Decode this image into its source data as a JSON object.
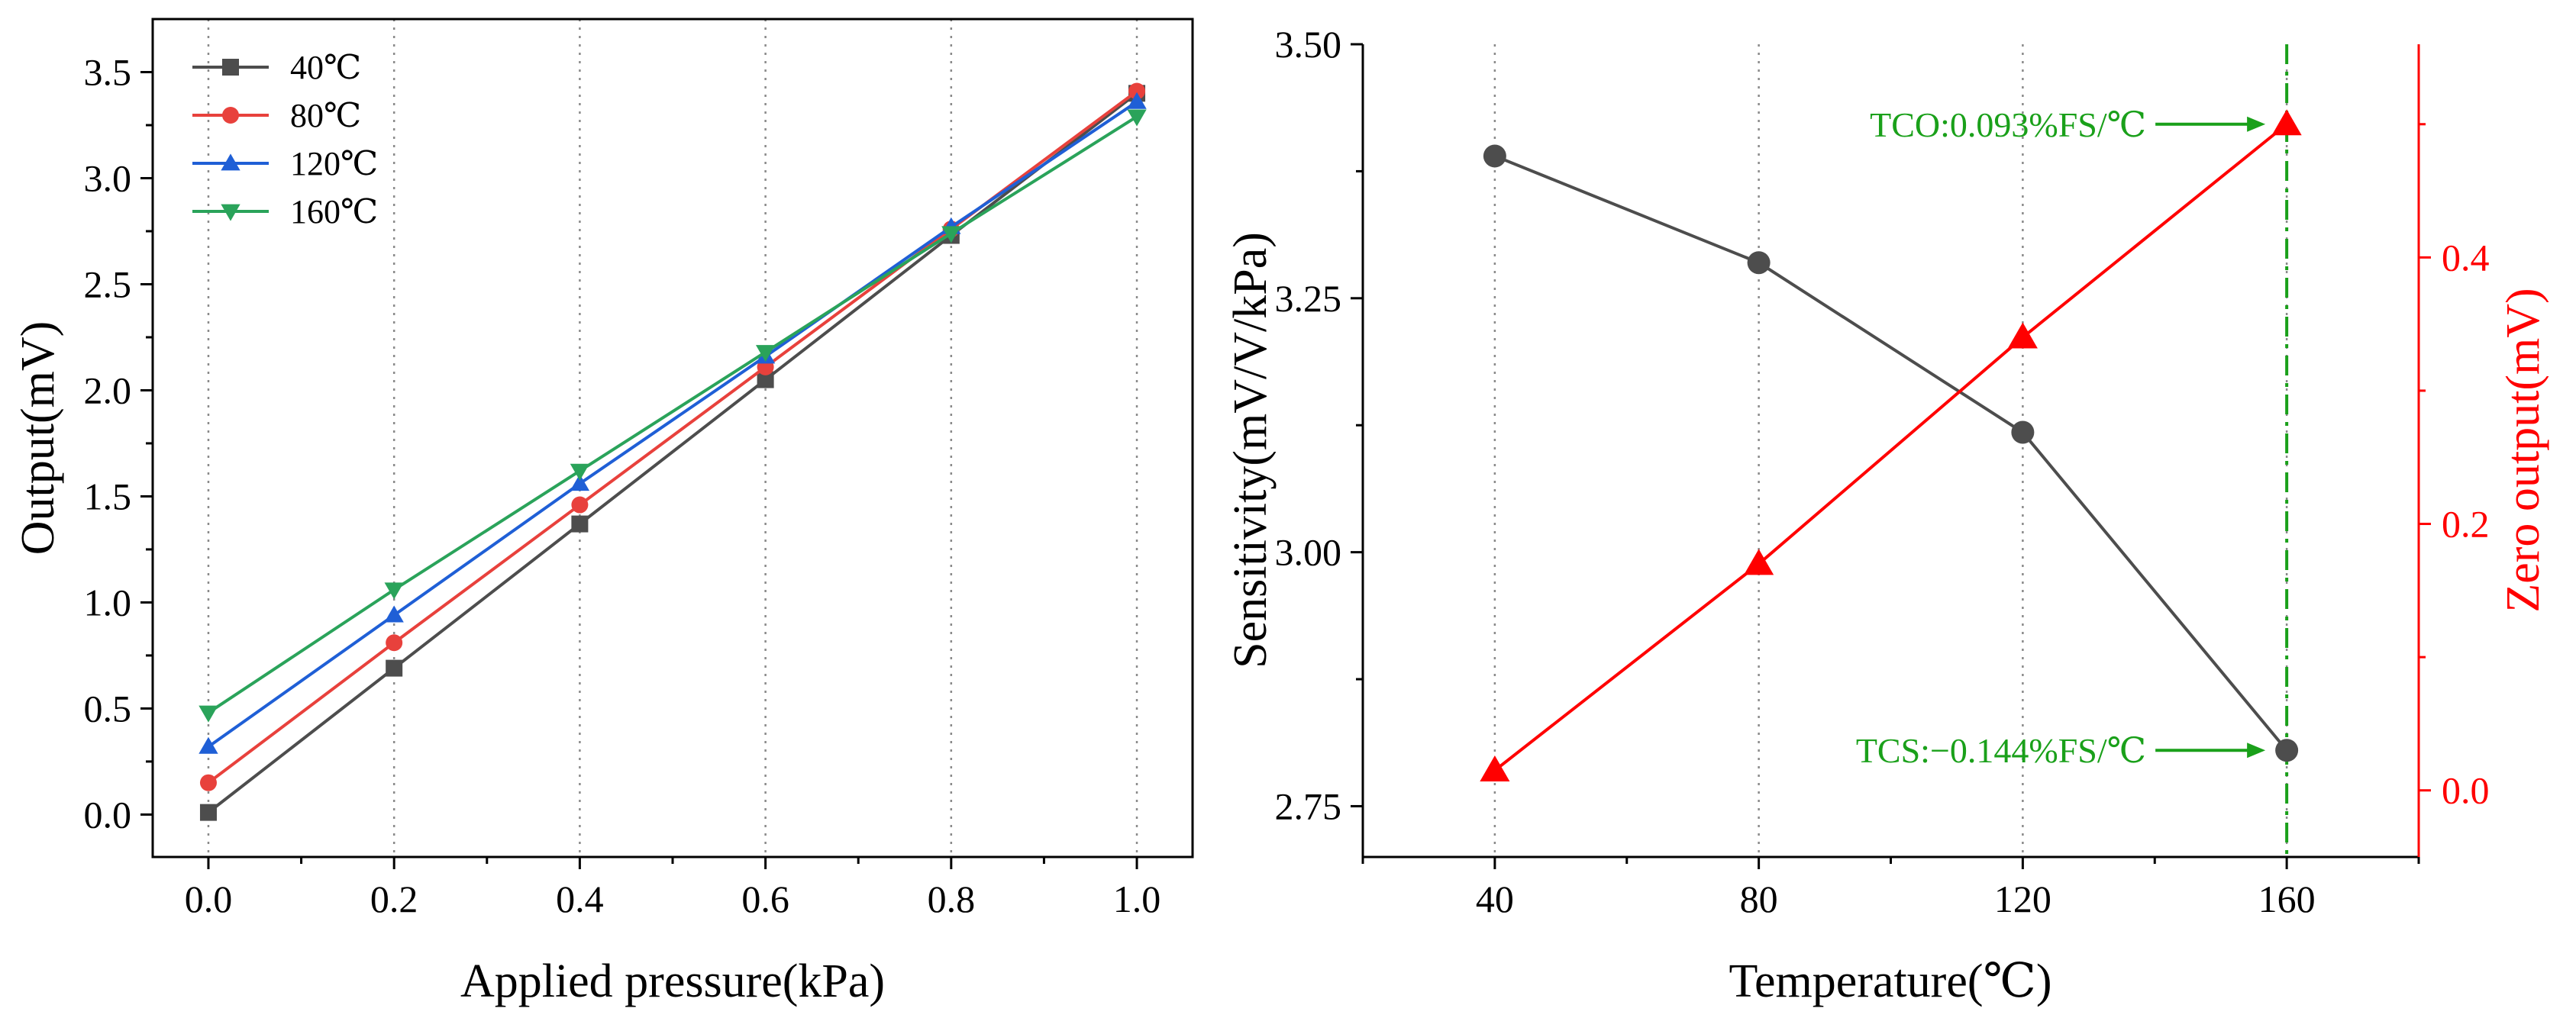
{
  "chart_data": [
    {
      "type": "line",
      "xlabel": "Applied pressure(kPa)",
      "ylabel": "Output(mV)",
      "xlim": [
        -0.06,
        1.06
      ],
      "ylim": [
        -0.2,
        3.75
      ],
      "x_ticks": [
        "0.0",
        "0.2",
        "0.4",
        "0.6",
        "0.8",
        "1.0"
      ],
      "y_ticks": [
        "0.0",
        "0.5",
        "1.0",
        "1.5",
        "2.0",
        "2.5",
        "3.0",
        "3.5"
      ],
      "x": [
        0.0,
        0.2,
        0.4,
        0.6,
        0.8,
        1.0
      ],
      "grid": "vertical dotted",
      "legend": "top-left",
      "series": [
        {
          "name": "40℃",
          "values": [
            0.01,
            0.69,
            1.37,
            2.05,
            2.73,
            3.4
          ],
          "color": "#4d4d4d",
          "marker": "square"
        },
        {
          "name": "80℃",
          "values": [
            0.15,
            0.81,
            1.46,
            2.11,
            2.76,
            3.41
          ],
          "color": "#e8413c",
          "marker": "circle"
        },
        {
          "name": "120℃",
          "values": [
            0.32,
            0.94,
            1.56,
            2.16,
            2.77,
            3.36
          ],
          "color": "#1f5fd6",
          "marker": "triangle-up"
        },
        {
          "name": "160℃",
          "values": [
            0.48,
            1.06,
            1.62,
            2.18,
            2.74,
            3.29
          ],
          "color": "#2aa35a",
          "marker": "triangle-down"
        }
      ]
    },
    {
      "type": "line",
      "xlabel": "Temperature(℃)",
      "ylabel": "Sensitivity(mV/V/kPa)",
      "ylabel_right": "Zero output(mV)",
      "xlim": [
        20,
        180
      ],
      "ylim": [
        2.7,
        3.5
      ],
      "ylim_right": [
        -0.05,
        0.56
      ],
      "x_ticks": [
        "40",
        "80",
        "120",
        "160"
      ],
      "y_ticks": [
        "2.75",
        "3.00",
        "3.25",
        "3.50"
      ],
      "y_ticks_right": [
        "0.0",
        "0.2",
        "0.4"
      ],
      "x": [
        40,
        80,
        120,
        160
      ],
      "grid": "vertical dotted",
      "series": [
        {
          "axis": "left",
          "values": [
            3.39,
            3.285,
            3.118,
            2.805
          ],
          "color": "#4d4d4d",
          "marker": "circle"
        },
        {
          "axis": "right",
          "values": [
            0.015,
            0.17,
            0.34,
            0.5
          ],
          "color": "#ff0000",
          "marker": "triangle-up"
        }
      ],
      "annotations": [
        {
          "text": "TCO:0.093%FS/℃",
          "x": 160,
          "y_right": 0.5,
          "color": "#1aa01a"
        },
        {
          "text": "TCS:−0.144%FS/℃",
          "x": 160,
          "y": 2.805,
          "color": "#1aa01a"
        }
      ],
      "reference_line": {
        "x": 160,
        "style": "dash-dot",
        "color": "#1aa01a"
      },
      "colors": {
        "right_axis": "#ff0000",
        "annotation": "#1aa01a"
      }
    }
  ]
}
